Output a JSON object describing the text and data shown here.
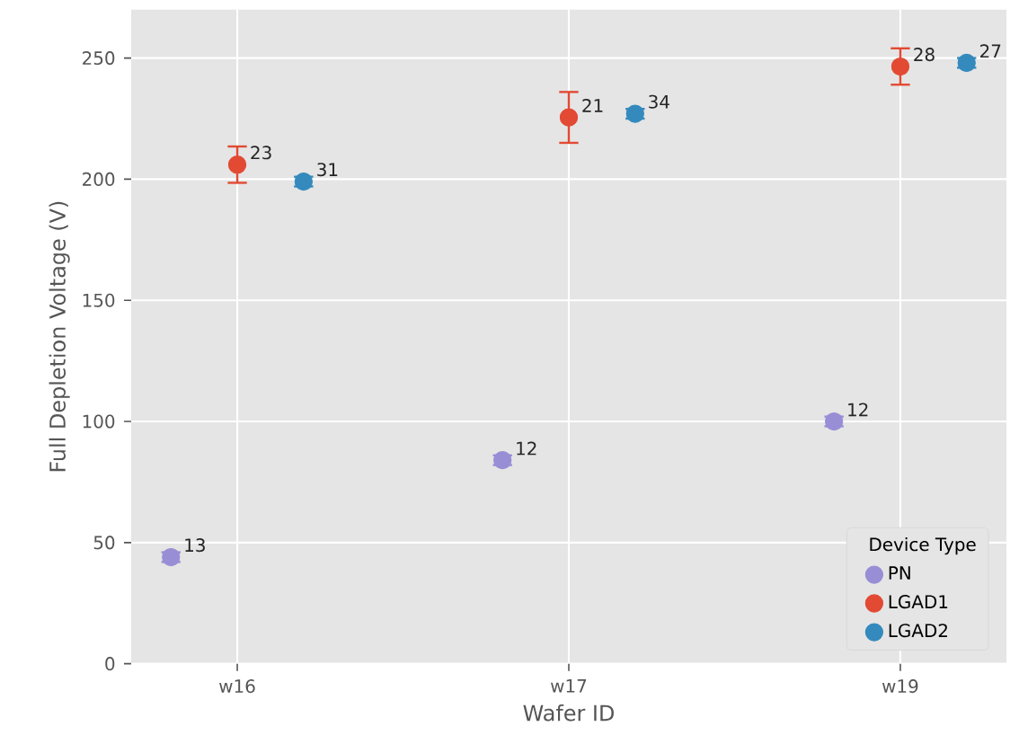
{
  "chart_data": {
    "type": "scatter",
    "xlabel": "Wafer ID",
    "ylabel": "Full Depletion Voltage (V)",
    "legend_title": "Device Type",
    "categories": [
      "w16",
      "w17",
      "w19"
    ],
    "series": [
      {
        "name": "PN",
        "color": "#988ed5",
        "values": [
          44,
          84,
          100
        ],
        "errors": [
          2,
          2,
          2
        ]
      },
      {
        "name": "LGAD1",
        "color": "#e24a33",
        "values": [
          206,
          225.5,
          246.5
        ],
        "errors": [
          7.5,
          10.5,
          7.5
        ]
      },
      {
        "name": "LGAD2",
        "color": "#348abd",
        "values": [
          199,
          227,
          248
        ],
        "errors": [
          2,
          2,
          2
        ]
      }
    ],
    "ylim": [
      0,
      270
    ],
    "yticks": [
      0,
      50,
      100,
      150,
      200,
      250
    ],
    "annotations": [
      "13",
      "12",
      "12",
      "23",
      "21",
      "28",
      "31",
      "34",
      "27"
    ],
    "grid": true,
    "legend": "bottom right",
    "marker": "circle"
  }
}
